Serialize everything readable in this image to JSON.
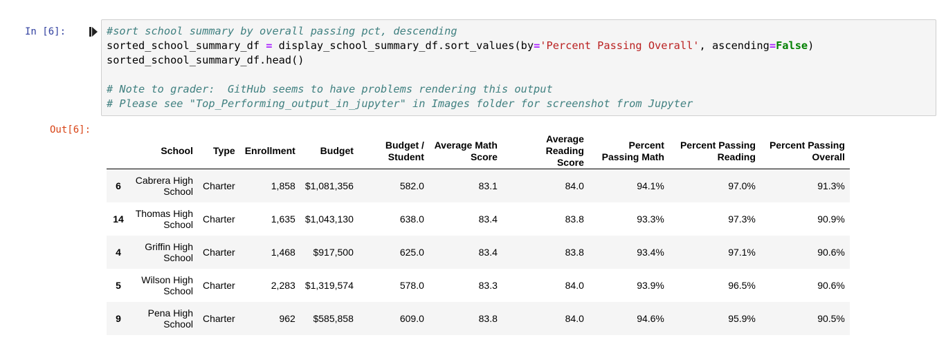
{
  "input_prompt": "In [6]:",
  "output_prompt": "Out[6]:",
  "code": {
    "line1": "#sort school summary by overall passing pct, descending",
    "line2_a": "sorted_school_summary_df ",
    "line2_b": "=",
    "line2_c": " display_school_summary_df.sort_values(by",
    "line2_d": "=",
    "line2_e": "'Percent Passing Overall'",
    "line2_f": ", ascending",
    "line2_g": "=",
    "line2_h": "False",
    "line2_i": ")",
    "line3": "sorted_school_summary_df.head()",
    "line5": "# Note to grader:  GitHub seems to have problems rendering this output",
    "line6": "# Please see \"Top_Performing_output_in_jupyter\" in Images folder for screenshot from Jupyter"
  },
  "table": {
    "headers": {
      "index": "",
      "school": "School",
      "type": "Type",
      "enrollment": "Enrollment",
      "budget": "Budget",
      "budget_per_student_1": "Budget /",
      "budget_per_student_2": "Student",
      "avg_math_1": "Average Math",
      "avg_math_2": "Score",
      "avg_reading_1": "Average Reading",
      "avg_reading_2": "Score",
      "pct_math_1": "Percent",
      "pct_math_2": "Passing Math",
      "pct_reading_1": "Percent Passing",
      "pct_reading_2": "Reading",
      "pct_overall_1": "Percent Passing",
      "pct_overall_2": "Overall"
    },
    "rows": [
      {
        "index": "6",
        "school_1": "Cabrera High",
        "school_2": "School",
        "type": "Charter",
        "enrollment": "1,858",
        "budget": "$1,081,356",
        "budget_per_student": "582.0",
        "avg_math": "83.1",
        "avg_reading": "84.0",
        "pct_math": "94.1%",
        "pct_reading": "97.0%",
        "pct_overall": "91.3%"
      },
      {
        "index": "14",
        "school_1": "Thomas High",
        "school_2": "School",
        "type": "Charter",
        "enrollment": "1,635",
        "budget": "$1,043,130",
        "budget_per_student": "638.0",
        "avg_math": "83.4",
        "avg_reading": "83.8",
        "pct_math": "93.3%",
        "pct_reading": "97.3%",
        "pct_overall": "90.9%"
      },
      {
        "index": "4",
        "school_1": "Griffin High",
        "school_2": "School",
        "type": "Charter",
        "enrollment": "1,468",
        "budget": "$917,500",
        "budget_per_student": "625.0",
        "avg_math": "83.4",
        "avg_reading": "83.8",
        "pct_math": "93.4%",
        "pct_reading": "97.1%",
        "pct_overall": "90.6%"
      },
      {
        "index": "5",
        "school_1": "Wilson High",
        "school_2": "School",
        "type": "Charter",
        "enrollment": "2,283",
        "budget": "$1,319,574",
        "budget_per_student": "578.0",
        "avg_math": "83.3",
        "avg_reading": "84.0",
        "pct_math": "93.9%",
        "pct_reading": "96.5%",
        "pct_overall": "90.6%"
      },
      {
        "index": "9",
        "school_1": "Pena High",
        "school_2": "School",
        "type": "Charter",
        "enrollment": "962",
        "budget": "$585,858",
        "budget_per_student": "609.0",
        "avg_math": "83.8",
        "avg_reading": "84.0",
        "pct_math": "94.6%",
        "pct_reading": "95.9%",
        "pct_overall": "90.5%"
      }
    ]
  },
  "colors": {
    "input_prompt": "#303f9f",
    "output_prompt": "#d84315",
    "comment": "#408080",
    "string": "#ba2121",
    "keyword": "#008000",
    "operator": "#aa22ff"
  },
  "icons": {
    "run": "run-cell-icon"
  }
}
